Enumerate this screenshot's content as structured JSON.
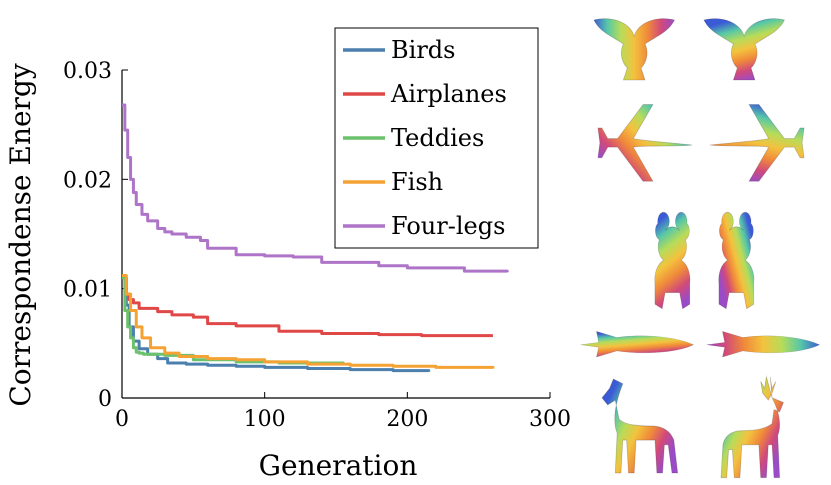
{
  "chart_data": {
    "type": "line",
    "xlabel": "Generation",
    "ylabel": "Correspondense Energy",
    "xlim": [
      0,
      300
    ],
    "ylim": [
      0,
      0.03
    ],
    "xticks": [
      "0",
      "100",
      "200",
      "300"
    ],
    "yticks": [
      "0",
      "0.01",
      "0.02",
      "0.03"
    ],
    "xtick_values": [
      0,
      100,
      200,
      300
    ],
    "ytick_values": [
      0,
      0.01,
      0.02,
      0.03
    ],
    "legend_position": "top-right",
    "grid": false,
    "series": [
      {
        "name": "Birds",
        "color": "#4a7fae",
        "x": [
          0,
          3,
          5,
          8,
          12,
          18,
          25,
          32,
          45,
          60,
          80,
          100,
          130,
          160,
          190,
          215
        ],
        "y": [
          0.011,
          0.0085,
          0.0065,
          0.0052,
          0.0045,
          0.004,
          0.0036,
          0.0032,
          0.0031,
          0.003,
          0.0029,
          0.0028,
          0.0027,
          0.0026,
          0.0025,
          0.0024
        ]
      },
      {
        "name": "Airplanes",
        "color": "#e04848",
        "x": [
          0,
          3,
          5,
          8,
          12,
          18,
          25,
          35,
          50,
          60,
          80,
          100,
          110,
          140,
          180,
          210,
          260
        ],
        "y": [
          0.011,
          0.0095,
          0.009,
          0.0087,
          0.0082,
          0.0082,
          0.0079,
          0.0076,
          0.0074,
          0.0068,
          0.0066,
          0.0066,
          0.0061,
          0.0059,
          0.0058,
          0.0057,
          0.0057
        ]
      },
      {
        "name": "Teddies",
        "color": "#6cc26c",
        "x": [
          0,
          2,
          4,
          6,
          8,
          10,
          12,
          15,
          20,
          30,
          50,
          80,
          110,
          140,
          155
        ],
        "y": [
          0.011,
          0.008,
          0.0065,
          0.0055,
          0.0046,
          0.0042,
          0.0041,
          0.004,
          0.004,
          0.0039,
          0.0035,
          0.0033,
          0.0032,
          0.0032,
          0.0031
        ]
      },
      {
        "name": "Fish",
        "color": "#f5a234",
        "x": [
          0,
          3,
          6,
          10,
          14,
          20,
          30,
          40,
          60,
          80,
          100,
          130,
          160,
          190,
          220,
          260
        ],
        "y": [
          0.0112,
          0.0095,
          0.008,
          0.0065,
          0.0055,
          0.0046,
          0.0041,
          0.0038,
          0.0036,
          0.0035,
          0.0033,
          0.0031,
          0.003,
          0.0029,
          0.0028,
          0.0027
        ]
      },
      {
        "name": "Four-legs",
        "color": "#ae74c8",
        "x": [
          0,
          2,
          4,
          6,
          8,
          10,
          14,
          18,
          25,
          30,
          35,
          45,
          55,
          60,
          80,
          100,
          120,
          140,
          180,
          200,
          240,
          270
        ],
        "y": [
          0.0268,
          0.0245,
          0.022,
          0.02,
          0.0188,
          0.0177,
          0.0168,
          0.0162,
          0.0155,
          0.0152,
          0.015,
          0.0147,
          0.0144,
          0.0137,
          0.0131,
          0.013,
          0.0129,
          0.0124,
          0.0121,
          0.0119,
          0.0116,
          0.0115
        ]
      }
    ]
  },
  "shape_panels": [
    {
      "category": "Birds",
      "icons": [
        "bird-source-shape",
        "bird-target-shape"
      ]
    },
    {
      "category": "Airplanes",
      "icons": [
        "airplane-source-shape",
        "airplane-target-shape"
      ]
    },
    {
      "category": "Teddies",
      "icons": [
        "teddy-source-shape",
        "teddy-target-shape"
      ]
    },
    {
      "category": "Fish",
      "icons": [
        "fish-source-shape",
        "fish-target-shape"
      ]
    },
    {
      "category": "Four-legs",
      "icons": [
        "horse-source-shape",
        "deer-target-shape"
      ]
    }
  ],
  "colors": {
    "gradient_stops": [
      "#3b5bd6",
      "#56c7a8",
      "#b6dc5a",
      "#f3c23e",
      "#f08a3a",
      "#d14a7a",
      "#9a4bc8"
    ]
  }
}
